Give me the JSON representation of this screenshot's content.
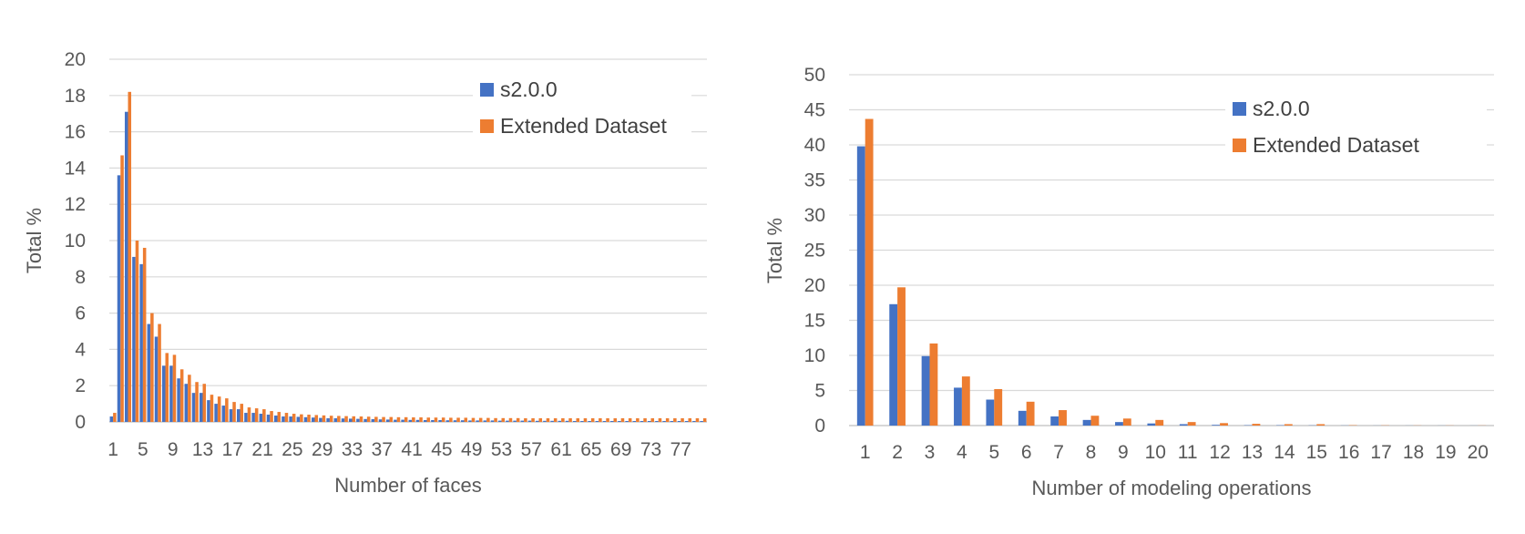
{
  "chart_data": [
    {
      "type": "bar",
      "title": "",
      "xlabel": "Number of faces",
      "ylabel": "Total %",
      "ylim": [
        0,
        20
      ],
      "yticks": [
        0,
        2,
        4,
        6,
        8,
        10,
        12,
        14,
        16,
        18,
        20
      ],
      "categories": [
        1,
        2,
        3,
        4,
        5,
        6,
        7,
        8,
        9,
        10,
        11,
        12,
        13,
        14,
        15,
        16,
        17,
        18,
        19,
        20,
        21,
        22,
        23,
        24,
        25,
        26,
        27,
        28,
        29,
        30,
        31,
        32,
        33,
        34,
        35,
        36,
        37,
        38,
        39,
        40,
        41,
        42,
        43,
        44,
        45,
        46,
        47,
        48,
        49,
        50,
        51,
        52,
        53,
        54,
        55,
        56,
        57,
        58,
        59,
        60,
        61,
        62,
        63,
        64,
        65,
        66,
        67,
        68,
        69,
        70,
        71,
        72,
        73,
        74,
        75,
        76,
        77,
        78,
        79,
        80
      ],
      "xtick_labels": [
        "1",
        "5",
        "9",
        "13",
        "17",
        "21",
        "25",
        "29",
        "33",
        "37",
        "41",
        "45",
        "49",
        "53",
        "57",
        "61",
        "65",
        "69",
        "73",
        "77"
      ],
      "legend": "top-right",
      "grid": true,
      "series": [
        {
          "name": "s2.0.0",
          "color": "#4472C4",
          "values": [
            0.3,
            13.6,
            17.1,
            9.1,
            8.7,
            5.4,
            4.7,
            3.1,
            3.1,
            2.4,
            2.1,
            1.6,
            1.6,
            1.2,
            1.0,
            0.9,
            0.7,
            0.7,
            0.5,
            0.5,
            0.45,
            0.4,
            0.35,
            0.3,
            0.3,
            0.28,
            0.26,
            0.24,
            0.22,
            0.2,
            0.2,
            0.19,
            0.18,
            0.17,
            0.16,
            0.15,
            0.14,
            0.13,
            0.12,
            0.12,
            0.11,
            0.11,
            0.1,
            0.1,
            0.1,
            0.09,
            0.09,
            0.09,
            0.08,
            0.08,
            0.08,
            0.08,
            0.07,
            0.07,
            0.07,
            0.07,
            0.07,
            0.06,
            0.06,
            0.06,
            0.06,
            0.06,
            0.05,
            0.05,
            0.05,
            0.05,
            0.05,
            0.05,
            0.05,
            0.05,
            0.05,
            0.05,
            0.05,
            0.05,
            0.05,
            0.05,
            0.05,
            0.05,
            0.05,
            0.05
          ]
        },
        {
          "name": "Extended Dataset",
          "color": "#ED7D31",
          "values": [
            0.5,
            14.7,
            18.2,
            10.0,
            9.6,
            6.0,
            5.4,
            3.8,
            3.7,
            2.9,
            2.6,
            2.2,
            2.1,
            1.5,
            1.4,
            1.3,
            1.1,
            1.0,
            0.8,
            0.75,
            0.7,
            0.6,
            0.55,
            0.5,
            0.45,
            0.42,
            0.4,
            0.38,
            0.36,
            0.34,
            0.33,
            0.32,
            0.31,
            0.3,
            0.29,
            0.28,
            0.27,
            0.27,
            0.26,
            0.26,
            0.25,
            0.25,
            0.24,
            0.24,
            0.24,
            0.23,
            0.23,
            0.23,
            0.22,
            0.22,
            0.22,
            0.21,
            0.21,
            0.21,
            0.21,
            0.2,
            0.2,
            0.2,
            0.2,
            0.2,
            0.2,
            0.2,
            0.2,
            0.2,
            0.2,
            0.2,
            0.2,
            0.2,
            0.2,
            0.2,
            0.2,
            0.2,
            0.2,
            0.2,
            0.2,
            0.2,
            0.2,
            0.2,
            0.2,
            0.2
          ]
        }
      ]
    },
    {
      "type": "bar",
      "title": "",
      "xlabel": "Number of modeling operations",
      "ylabel": "Total %",
      "ylim": [
        0,
        50
      ],
      "yticks": [
        0,
        5,
        10,
        15,
        20,
        25,
        30,
        35,
        40,
        45,
        50
      ],
      "categories": [
        1,
        2,
        3,
        4,
        5,
        6,
        7,
        8,
        9,
        10,
        11,
        12,
        13,
        14,
        15,
        16,
        17,
        18,
        19,
        20
      ],
      "xtick_labels": [
        "1",
        "2",
        "3",
        "4",
        "5",
        "6",
        "7",
        "8",
        "9",
        "10",
        "11",
        "12",
        "13",
        "14",
        "15",
        "16",
        "17",
        "18",
        "19",
        "20"
      ],
      "legend": "top-right",
      "grid": true,
      "series": [
        {
          "name": "s2.0.0",
          "color": "#4472C4",
          "values": [
            39.8,
            17.3,
            9.9,
            5.4,
            3.7,
            2.1,
            1.3,
            0.8,
            0.5,
            0.3,
            0.2,
            0.1,
            0.05,
            0.05,
            0.03,
            0.02,
            0.01,
            0.01,
            0.01,
            0.01
          ]
        },
        {
          "name": "Extended Dataset",
          "color": "#ED7D31",
          "values": [
            43.7,
            19.7,
            11.7,
            7.0,
            5.2,
            3.4,
            2.2,
            1.4,
            1.0,
            0.8,
            0.5,
            0.35,
            0.25,
            0.2,
            0.2,
            0.05,
            0.03,
            0.02,
            0.02,
            0.02
          ]
        }
      ]
    }
  ]
}
